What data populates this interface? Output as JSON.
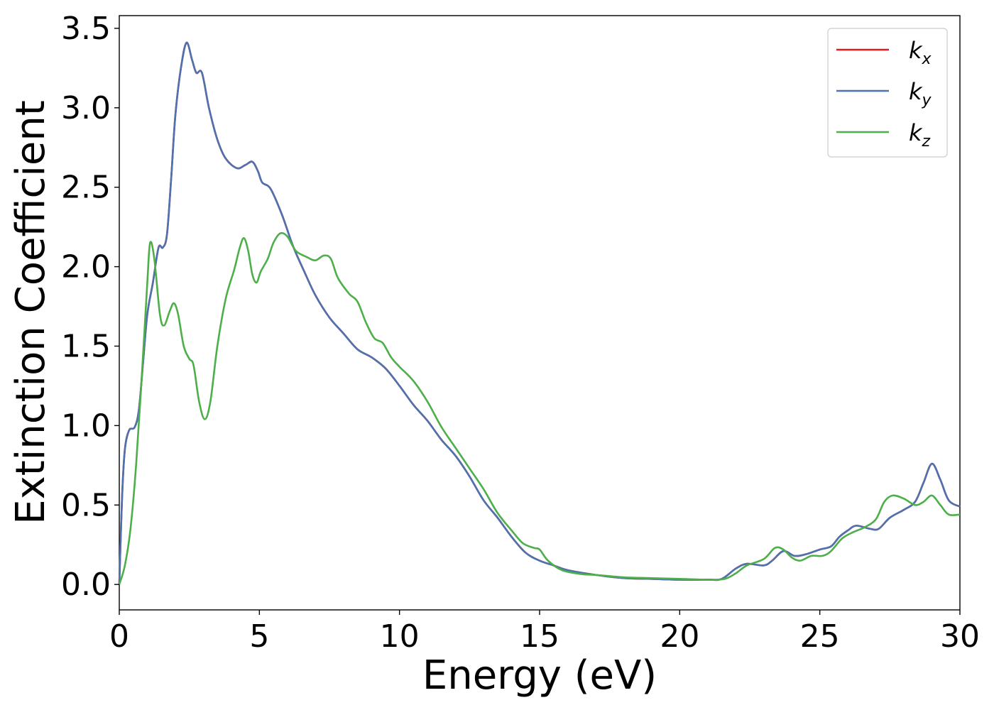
{
  "chart_data": {
    "type": "line",
    "xlabel": "Energy (eV)",
    "ylabel": "Extinction Coefficient",
    "xlim": [
      0,
      30
    ],
    "ylim": [
      -0.16,
      3.58
    ],
    "xticks": [
      0,
      5,
      10,
      15,
      20,
      25,
      30
    ],
    "xtick_labels": [
      "0",
      "5",
      "10",
      "15",
      "20",
      "25",
      "30"
    ],
    "yticks": [
      0.0,
      0.5,
      1.0,
      1.5,
      2.0,
      2.5,
      3.0,
      3.5
    ],
    "ytick_labels": [
      "0.0",
      "0.5",
      "1.0",
      "1.5",
      "2.0",
      "2.5",
      "3.0",
      "3.5"
    ],
    "grid": false,
    "legend_position": "top-right",
    "series": [
      {
        "name": "k",
        "subscript": "x",
        "color": "#e41a1c",
        "points": [
          [
            0,
            0.0
          ],
          [
            0.1,
            0.55
          ],
          [
            0.2,
            0.85
          ],
          [
            0.35,
            0.97
          ],
          [
            0.55,
            0.99
          ],
          [
            0.7,
            1.1
          ],
          [
            0.85,
            1.4
          ],
          [
            1.0,
            1.7
          ],
          [
            1.2,
            1.9
          ],
          [
            1.4,
            2.12
          ],
          [
            1.55,
            2.12
          ],
          [
            1.7,
            2.2
          ],
          [
            1.85,
            2.55
          ],
          [
            2.0,
            2.95
          ],
          [
            2.2,
            3.25
          ],
          [
            2.4,
            3.41
          ],
          [
            2.6,
            3.3
          ],
          [
            2.75,
            3.22
          ],
          [
            2.95,
            3.22
          ],
          [
            3.2,
            3.0
          ],
          [
            3.5,
            2.8
          ],
          [
            3.8,
            2.68
          ],
          [
            4.2,
            2.62
          ],
          [
            4.5,
            2.64
          ],
          [
            4.75,
            2.66
          ],
          [
            4.95,
            2.6
          ],
          [
            5.1,
            2.53
          ],
          [
            5.4,
            2.49
          ],
          [
            5.8,
            2.33
          ],
          [
            6.2,
            2.13
          ],
          [
            6.6,
            1.97
          ],
          [
            7.0,
            1.82
          ],
          [
            7.5,
            1.68
          ],
          [
            8.0,
            1.58
          ],
          [
            8.5,
            1.48
          ],
          [
            9.0,
            1.43
          ],
          [
            9.5,
            1.36
          ],
          [
            10.0,
            1.25
          ],
          [
            10.5,
            1.13
          ],
          [
            11.0,
            1.03
          ],
          [
            11.5,
            0.91
          ],
          [
            12.0,
            0.81
          ],
          [
            12.5,
            0.68
          ],
          [
            13.0,
            0.53
          ],
          [
            13.5,
            0.42
          ],
          [
            14.0,
            0.3
          ],
          [
            14.5,
            0.2
          ],
          [
            15.0,
            0.15
          ],
          [
            15.5,
            0.12
          ],
          [
            16.0,
            0.09
          ],
          [
            17.0,
            0.06
          ],
          [
            18.0,
            0.04
          ],
          [
            19.0,
            0.035
          ],
          [
            20.0,
            0.03
          ],
          [
            21.0,
            0.03
          ],
          [
            21.5,
            0.035
          ],
          [
            22.0,
            0.1
          ],
          [
            22.4,
            0.13
          ],
          [
            23.0,
            0.12
          ],
          [
            23.3,
            0.15
          ],
          [
            23.7,
            0.21
          ],
          [
            24.1,
            0.18
          ],
          [
            24.5,
            0.19
          ],
          [
            25.0,
            0.22
          ],
          [
            25.4,
            0.24
          ],
          [
            25.7,
            0.3
          ],
          [
            26.0,
            0.34
          ],
          [
            26.3,
            0.37
          ],
          [
            26.8,
            0.35
          ],
          [
            27.1,
            0.35
          ],
          [
            27.5,
            0.42
          ],
          [
            28.0,
            0.47
          ],
          [
            28.4,
            0.52
          ],
          [
            28.7,
            0.64
          ],
          [
            29.0,
            0.76
          ],
          [
            29.3,
            0.66
          ],
          [
            29.6,
            0.53
          ],
          [
            30.0,
            0.49
          ]
        ]
      },
      {
        "name": "k",
        "subscript": "y",
        "color": "#4c72b0",
        "points": [
          [
            0,
            0.0
          ],
          [
            0.1,
            0.55
          ],
          [
            0.2,
            0.85
          ],
          [
            0.35,
            0.97
          ],
          [
            0.55,
            0.99
          ],
          [
            0.7,
            1.1
          ],
          [
            0.85,
            1.4
          ],
          [
            1.0,
            1.7
          ],
          [
            1.2,
            1.9
          ],
          [
            1.4,
            2.12
          ],
          [
            1.55,
            2.12
          ],
          [
            1.7,
            2.2
          ],
          [
            1.85,
            2.55
          ],
          [
            2.0,
            2.95
          ],
          [
            2.2,
            3.25
          ],
          [
            2.4,
            3.41
          ],
          [
            2.6,
            3.3
          ],
          [
            2.75,
            3.22
          ],
          [
            2.95,
            3.22
          ],
          [
            3.2,
            3.0
          ],
          [
            3.5,
            2.8
          ],
          [
            3.8,
            2.68
          ],
          [
            4.2,
            2.62
          ],
          [
            4.5,
            2.64
          ],
          [
            4.75,
            2.66
          ],
          [
            4.95,
            2.6
          ],
          [
            5.1,
            2.53
          ],
          [
            5.4,
            2.49
          ],
          [
            5.8,
            2.33
          ],
          [
            6.2,
            2.13
          ],
          [
            6.6,
            1.97
          ],
          [
            7.0,
            1.82
          ],
          [
            7.5,
            1.68
          ],
          [
            8.0,
            1.58
          ],
          [
            8.5,
            1.48
          ],
          [
            9.0,
            1.43
          ],
          [
            9.5,
            1.36
          ],
          [
            10.0,
            1.25
          ],
          [
            10.5,
            1.13
          ],
          [
            11.0,
            1.03
          ],
          [
            11.5,
            0.91
          ],
          [
            12.0,
            0.81
          ],
          [
            12.5,
            0.68
          ],
          [
            13.0,
            0.53
          ],
          [
            13.5,
            0.42
          ],
          [
            14.0,
            0.3
          ],
          [
            14.5,
            0.2
          ],
          [
            15.0,
            0.15
          ],
          [
            15.5,
            0.12
          ],
          [
            16.0,
            0.09
          ],
          [
            17.0,
            0.06
          ],
          [
            18.0,
            0.04
          ],
          [
            19.0,
            0.035
          ],
          [
            20.0,
            0.03
          ],
          [
            21.0,
            0.03
          ],
          [
            21.5,
            0.035
          ],
          [
            22.0,
            0.1
          ],
          [
            22.4,
            0.13
          ],
          [
            23.0,
            0.12
          ],
          [
            23.3,
            0.15
          ],
          [
            23.7,
            0.21
          ],
          [
            24.1,
            0.18
          ],
          [
            24.5,
            0.19
          ],
          [
            25.0,
            0.22
          ],
          [
            25.4,
            0.24
          ],
          [
            25.7,
            0.3
          ],
          [
            26.0,
            0.34
          ],
          [
            26.3,
            0.37
          ],
          [
            26.8,
            0.35
          ],
          [
            27.1,
            0.35
          ],
          [
            27.5,
            0.42
          ],
          [
            28.0,
            0.47
          ],
          [
            28.4,
            0.52
          ],
          [
            28.7,
            0.64
          ],
          [
            29.0,
            0.76
          ],
          [
            29.3,
            0.66
          ],
          [
            29.6,
            0.53
          ],
          [
            30.0,
            0.49
          ]
        ]
      },
      {
        "name": "k",
        "subscript": "z",
        "color": "#4daf4a",
        "points": [
          [
            0,
            0.0
          ],
          [
            0.2,
            0.12
          ],
          [
            0.4,
            0.35
          ],
          [
            0.6,
            0.75
          ],
          [
            0.8,
            1.3
          ],
          [
            1.0,
            1.9
          ],
          [
            1.1,
            2.15
          ],
          [
            1.25,
            2.05
          ],
          [
            1.45,
            1.7
          ],
          [
            1.6,
            1.63
          ],
          [
            1.8,
            1.72
          ],
          [
            1.95,
            1.77
          ],
          [
            2.1,
            1.7
          ],
          [
            2.3,
            1.5
          ],
          [
            2.5,
            1.42
          ],
          [
            2.65,
            1.38
          ],
          [
            2.85,
            1.15
          ],
          [
            3.05,
            1.04
          ],
          [
            3.25,
            1.15
          ],
          [
            3.5,
            1.5
          ],
          [
            3.8,
            1.8
          ],
          [
            4.1,
            1.98
          ],
          [
            4.3,
            2.12
          ],
          [
            4.45,
            2.18
          ],
          [
            4.6,
            2.1
          ],
          [
            4.75,
            1.95
          ],
          [
            4.9,
            1.9
          ],
          [
            5.05,
            1.97
          ],
          [
            5.3,
            2.05
          ],
          [
            5.5,
            2.15
          ],
          [
            5.75,
            2.21
          ],
          [
            6.0,
            2.19
          ],
          [
            6.3,
            2.1
          ],
          [
            6.7,
            2.06
          ],
          [
            7.0,
            2.04
          ],
          [
            7.3,
            2.07
          ],
          [
            7.55,
            2.05
          ],
          [
            7.8,
            1.93
          ],
          [
            8.2,
            1.83
          ],
          [
            8.5,
            1.78
          ],
          [
            8.8,
            1.65
          ],
          [
            9.1,
            1.55
          ],
          [
            9.4,
            1.52
          ],
          [
            9.7,
            1.43
          ],
          [
            10.0,
            1.37
          ],
          [
            10.5,
            1.28
          ],
          [
            11.0,
            1.15
          ],
          [
            11.5,
            0.99
          ],
          [
            12.0,
            0.86
          ],
          [
            12.5,
            0.73
          ],
          [
            13.0,
            0.6
          ],
          [
            13.5,
            0.45
          ],
          [
            14.0,
            0.34
          ],
          [
            14.4,
            0.26
          ],
          [
            14.8,
            0.23
          ],
          [
            15.0,
            0.22
          ],
          [
            15.3,
            0.15
          ],
          [
            15.8,
            0.09
          ],
          [
            16.5,
            0.065
          ],
          [
            17.0,
            0.06
          ],
          [
            18.0,
            0.045
          ],
          [
            19.0,
            0.04
          ],
          [
            20.0,
            0.035
          ],
          [
            21.0,
            0.03
          ],
          [
            21.6,
            0.035
          ],
          [
            22.0,
            0.07
          ],
          [
            22.4,
            0.12
          ],
          [
            23.0,
            0.16
          ],
          [
            23.4,
            0.23
          ],
          [
            23.7,
            0.22
          ],
          [
            24.0,
            0.17
          ],
          [
            24.3,
            0.15
          ],
          [
            24.7,
            0.18
          ],
          [
            25.1,
            0.18
          ],
          [
            25.4,
            0.21
          ],
          [
            25.8,
            0.29
          ],
          [
            26.2,
            0.33
          ],
          [
            26.6,
            0.36
          ],
          [
            27.0,
            0.41
          ],
          [
            27.3,
            0.52
          ],
          [
            27.6,
            0.56
          ],
          [
            28.0,
            0.54
          ],
          [
            28.4,
            0.5
          ],
          [
            28.7,
            0.52
          ],
          [
            29.0,
            0.56
          ],
          [
            29.3,
            0.5
          ],
          [
            29.6,
            0.44
          ],
          [
            30.0,
            0.44
          ]
        ]
      }
    ]
  }
}
